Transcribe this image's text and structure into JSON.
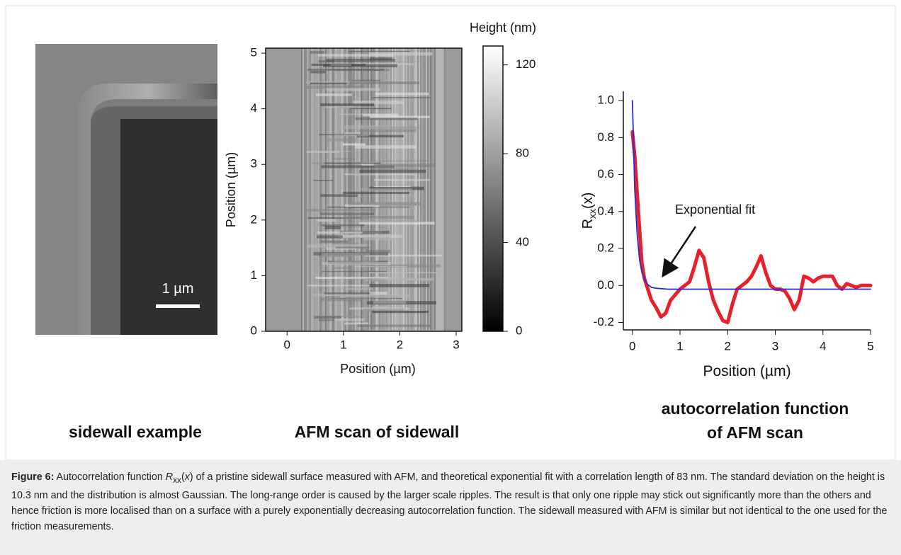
{
  "panels": [
    {
      "title": "sidewall example",
      "scale_bar": "1 µm"
    },
    {
      "title": "AFM scan of sidewall"
    },
    {
      "title_lines": [
        "autocorrelation function",
        "of AFM scan"
      ]
    }
  ],
  "chart_data": [
    {
      "type": "heatmap",
      "xlabel": "Position (µm)",
      "ylabel": "Position (µm)",
      "xlim": [
        -0.38,
        3.1
      ],
      "ylim": [
        0,
        5.09
      ],
      "xticks": [
        0,
        1,
        2,
        3
      ],
      "yticks": [
        0,
        1,
        2,
        3,
        4,
        5
      ],
      "colorbar": {
        "label": "Height (nm)",
        "lim": [
          0,
          128.5
        ],
        "ticks": [
          0,
          40,
          80,
          120
        ]
      }
    },
    {
      "type": "line",
      "xlabel": "Position (µm)",
      "ylabel": {
        "base": "R",
        "sub": "xx",
        "rest": "(x)"
      },
      "annotation": "Exponential fit",
      "xlim": [
        -0.19,
        5.0
      ],
      "ylim": [
        -0.24,
        1.05
      ],
      "xticks": [
        0,
        1,
        2,
        3,
        4,
        5
      ],
      "yticks": [
        {
          "value": -0.2,
          "label": "-0.2"
        },
        {
          "value": 0,
          "label": "0.0"
        },
        {
          "value": 0.2,
          "label": "0.2"
        },
        {
          "value": 0.4,
          "label": "0.4"
        },
        {
          "value": 0.6,
          "label": "0.6"
        },
        {
          "value": 0.8,
          "label": "0.8"
        },
        {
          "value": 1,
          "label": "1.0"
        }
      ],
      "series": [
        {
          "color": "#e8202a",
          "x": [
            0,
            0.05,
            0.1,
            0.15,
            0.2,
            0.25,
            0.3,
            0.4,
            0.5,
            0.6,
            0.7,
            0.8,
            0.9,
            1.0,
            1.1,
            1.2,
            1.3,
            1.4,
            1.5,
            1.6,
            1.7,
            1.8,
            1.9,
            2.0,
            2.1,
            2.2,
            2.3,
            2.4,
            2.5,
            2.6,
            2.7,
            2.8,
            2.9,
            3.0,
            3.1,
            3.2,
            3.3,
            3.4,
            3.5,
            3.6,
            3.7,
            3.8,
            3.9,
            4.0,
            4.1,
            4.2,
            4.3,
            4.4,
            4.5,
            4.6,
            4.7,
            4.8,
            4.9,
            5.0
          ],
          "values": [
            0.83,
            0.7,
            0.5,
            0.3,
            0.12,
            0.04,
            0.0,
            -0.08,
            -0.12,
            -0.17,
            -0.15,
            -0.08,
            -0.05,
            -0.02,
            0.0,
            0.02,
            0.1,
            0.19,
            0.15,
            0.02,
            -0.08,
            -0.14,
            -0.19,
            -0.2,
            -0.1,
            -0.02,
            0.0,
            0.02,
            0.05,
            0.1,
            0.16,
            0.07,
            0.0,
            -0.02,
            -0.02,
            -0.03,
            -0.07,
            -0.13,
            -0.08,
            0.05,
            0.04,
            0.02,
            0.04,
            0.05,
            0.05,
            0.05,
            0.0,
            -0.02,
            0.01,
            0.0,
            -0.01,
            0.0,
            0.0,
            0.0
          ]
        },
        {
          "color": "#2a2ad6",
          "x": [
            0,
            0.05,
            0.1,
            0.15,
            0.2,
            0.3,
            0.4,
            0.5,
            0.75,
            1,
            2,
            3,
            4,
            5
          ],
          "values": [
            1.0,
            0.52,
            0.28,
            0.14,
            0.07,
            0.01,
            -0.01,
            -0.015,
            -0.02,
            -0.02,
            -0.02,
            -0.02,
            -0.02,
            -0.02
          ]
        }
      ]
    }
  ],
  "caption": {
    "label": "Figure 6:",
    "intro": " Autocorrelation function ",
    "math": {
      "base": "R",
      "sub": "xx",
      "open": "(",
      "var": "x",
      "close": ")"
    },
    "text": " of a pristine sidewall surface measured with AFM, and theoretical exponential fit with a correlation length of 83 nm. The standard deviation on the height is 10.3 nm and the distribution is almost Gaussian. The long-range order is caused by the larger scale ripples. The result is that only one ripple may stick out significantly more than the others and hence friction is more localised than on a surface with a purely exponentially decreasing autocorrelation function. The sidewall measured with AFM is similar but not identical to the one used for the friction measurements."
  }
}
